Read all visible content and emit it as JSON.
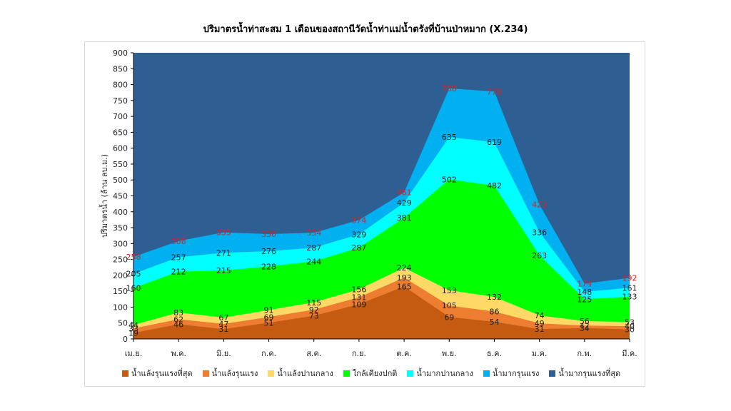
{
  "chart_data": {
    "type": "area",
    "title": "ปริมาตรน้ำท่าสะสม 1 เดือนของสถานีวัดน้ำท่าแม่น้ำตรังที่บ้านป่าหมาก (X.234)",
    "xlabel": "",
    "ylabel": "ปริมาตรน้ำ (ล้าน ลบ.ม.)",
    "ylim": [
      0,
      900
    ],
    "ytick_step": 50,
    "grid": false,
    "legend_position": "bottom",
    "categories": [
      "เม.ย.",
      "พ.ค.",
      "มิ.ย.",
      "ก.ค.",
      "ส.ค.",
      "ก.ย.",
      "ต.ค.",
      "พ.ย.",
      "ธ.ค.",
      "ม.ค.",
      "ก.พ.",
      "มี.ค."
    ],
    "series": [
      {
        "name": "น้ำแล้งรุนแรงที่สุด",
        "color": "#c55a11",
        "values": [
          19,
          46,
          31,
          51,
          73,
          109,
          165,
          69,
          54,
          31,
          34,
          30
        ]
      },
      {
        "name": "น้ำแล้งรุนแรง",
        "color": "#ed7d31",
        "values": [
          33,
          62,
          47,
          69,
          92,
          131,
          193,
          105,
          86,
          49,
          42,
          40
        ]
      },
      {
        "name": "น้ำแล้งปานกลาง",
        "color": "#ffd966",
        "values": [
          44,
          83,
          67,
          91,
          115,
          156,
          224,
          153,
          132,
          74,
          56,
          53
        ]
      },
      {
        "name": "ใกล้เคียงปกติ",
        "color": "#00ff00",
        "values": [
          160,
          212,
          215,
          228,
          244,
          287,
          381,
          502,
          482,
          263,
          125,
          133
        ]
      },
      {
        "name": "น้ำมากปานกลาง",
        "color": "#00ffff",
        "values": [
          205,
          257,
          271,
          276,
          287,
          329,
          429,
          635,
          619,
          336,
          148,
          161
        ]
      },
      {
        "name": "น้ำมากรุนแรง",
        "color": "#00b0f0",
        "values": [
          258,
          308,
          335,
          330,
          334,
          374,
          461,
          788,
          778,
          423,
          174,
          192
        ]
      },
      {
        "name": "น้ำมากรุนแรงที่สุด",
        "color": "#2f5f92",
        "values": [
          900,
          900,
          900,
          900,
          900,
          900,
          900,
          900,
          900,
          900,
          900,
          900
        ]
      }
    ],
    "data_labels": [
      {
        "series": 0,
        "color": "#222222",
        "values": [
          "19",
          "46",
          "31",
          "51",
          "73",
          "109",
          "165",
          "69",
          "54",
          "31",
          "34",
          "30"
        ]
      },
      {
        "series": 1,
        "color": "#222222",
        "values": [
          "33",
          "62",
          "47",
          "69",
          "92",
          "131",
          "193",
          "105",
          "86",
          "49",
          "42",
          "40"
        ]
      },
      {
        "series": 2,
        "color": "#222222",
        "values": [
          "44",
          "83",
          "67",
          "91",
          "115",
          "156",
          "224",
          "153",
          "132",
          "74",
          "56",
          "53"
        ]
      },
      {
        "series": 3,
        "color": "#222222",
        "values": [
          "160",
          "212",
          "215",
          "228",
          "244",
          "287",
          "381",
          "502",
          "482",
          "263",
          "125",
          "133"
        ]
      },
      {
        "series": 4,
        "color": "#222222",
        "values": [
          "205",
          "257",
          "271",
          "276",
          "287",
          "329",
          "429",
          "635",
          "619",
          "336",
          "148",
          "161"
        ]
      },
      {
        "series": 5,
        "color": "#e02020",
        "values": [
          "258",
          "308",
          "335",
          "330",
          "334",
          "374",
          "461",
          "788",
          "778",
          "423",
          "174",
          "192"
        ]
      }
    ]
  }
}
